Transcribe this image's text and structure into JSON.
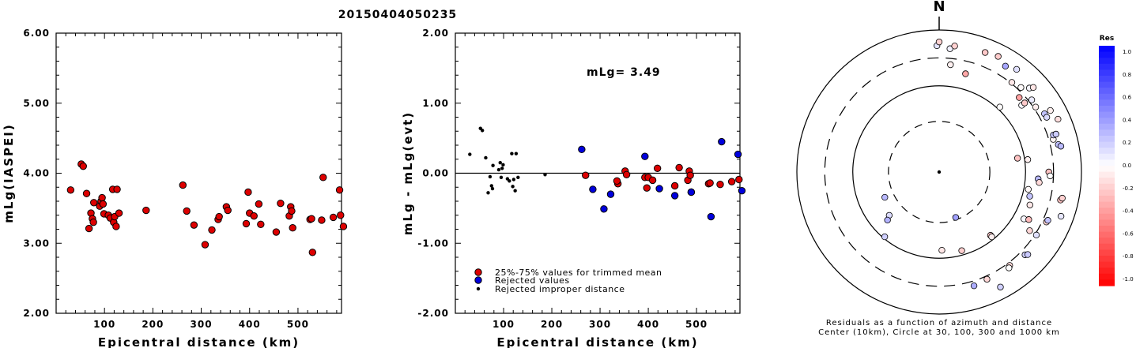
{
  "title": "20150404050235",
  "colors": {
    "red": "#dd0000",
    "blue": "#0000dd",
    "black": "#000000"
  },
  "chart_data": [
    {
      "type": "scatter",
      "xlabel": "Epicentral distance (km)",
      "ylabel": "mLg(IASPEI)",
      "xlim": [
        0,
        590
      ],
      "ylim": [
        2.0,
        6.0
      ],
      "xticks": [
        "100",
        "200",
        "300",
        "400",
        "500"
      ],
      "yticks": [
        "2.00",
        "3.00",
        "4.00",
        "5.00",
        "6.00"
      ],
      "points": [
        [
          30,
          3.76
        ],
        [
          52,
          4.13
        ],
        [
          56,
          4.1
        ],
        [
          63,
          3.71
        ],
        [
          68,
          3.21
        ],
        [
          72,
          3.43
        ],
        [
          75,
          3.35
        ],
        [
          77,
          3.3
        ],
        [
          78,
          3.58
        ],
        [
          90,
          3.53
        ],
        [
          93,
          3.6
        ],
        [
          95,
          3.65
        ],
        [
          97,
          3.56
        ],
        [
          99,
          3.42
        ],
        [
          108,
          3.4
        ],
        [
          112,
          3.36
        ],
        [
          117,
          3.77
        ],
        [
          119,
          3.3
        ],
        [
          121,
          3.38
        ],
        [
          124,
          3.24
        ],
        [
          126,
          3.77
        ],
        [
          130,
          3.43
        ],
        [
          186,
          3.47
        ],
        [
          262,
          3.83
        ],
        [
          270,
          3.46
        ],
        [
          285,
          3.26
        ],
        [
          308,
          2.98
        ],
        [
          322,
          3.19
        ],
        [
          335,
          3.34
        ],
        [
          337,
          3.38
        ],
        [
          352,
          3.52
        ],
        [
          355,
          3.47
        ],
        [
          393,
          3.28
        ],
        [
          397,
          3.73
        ],
        [
          400,
          3.43
        ],
        [
          409,
          3.39
        ],
        [
          419,
          3.56
        ],
        [
          423,
          3.27
        ],
        [
          455,
          3.16
        ],
        [
          464,
          3.57
        ],
        [
          482,
          3.39
        ],
        [
          485,
          3.52
        ],
        [
          487,
          3.46
        ],
        [
          489,
          3.22
        ],
        [
          525,
          3.34
        ],
        [
          528,
          3.35
        ],
        [
          530,
          2.87
        ],
        [
          549,
          3.33
        ],
        [
          552,
          3.94
        ],
        [
          573,
          3.37
        ],
        [
          586,
          3.76
        ],
        [
          588,
          3.4
        ],
        [
          594,
          3.24
        ]
      ]
    },
    {
      "type": "scatter",
      "xlabel": "Epicentral distance (km)",
      "ylabel": "mLg - mLg(evt)",
      "xlim": [
        0,
        590
      ],
      "ylim": [
        -2.0,
        2.0
      ],
      "xticks": [
        "100",
        "200",
        "300",
        "400",
        "500"
      ],
      "yticks": [
        "-2.00",
        "-1.00",
        "0.00",
        "1.00",
        "2.00"
      ],
      "annotation": "mLg= 3.49",
      "legend": [
        {
          "label": "25%-75% values for trimmed mean",
          "color": "#dd0000",
          "marker": "circle"
        },
        {
          "label": "Rejected values",
          "color": "#0000dd",
          "marker": "circle"
        },
        {
          "label": "Rejected improper distance",
          "color": "#000000",
          "marker": "dot"
        }
      ],
      "series": [
        {
          "kind": "trimmed",
          "points": [
            [
              270,
              -0.03
            ],
            [
              337,
              -0.15
            ],
            [
              335,
              -0.11
            ],
            [
              352,
              0.03
            ],
            [
              355,
              -0.02
            ],
            [
              393,
              -0.06
            ],
            [
              397,
              -0.21
            ],
            [
              400,
              -0.06
            ],
            [
              409,
              -0.1
            ],
            [
              419,
              0.07
            ],
            [
              455,
              -0.18
            ],
            [
              464,
              0.08
            ],
            [
              482,
              -0.1
            ],
            [
              485,
              0.03
            ],
            [
              487,
              -0.03
            ],
            [
              489,
              -0.27
            ],
            [
              525,
              -0.15
            ],
            [
              528,
              -0.14
            ],
            [
              549,
              -0.16
            ],
            [
              573,
              -0.12
            ],
            [
              588,
              -0.09
            ]
          ]
        },
        {
          "kind": "rejected",
          "points": [
            [
              262,
              0.34
            ],
            [
              285,
              -0.23
            ],
            [
              308,
              -0.51
            ],
            [
              322,
              -0.3
            ],
            [
              393,
              0.24
            ],
            [
              423,
              -0.22
            ],
            [
              455,
              -0.32
            ],
            [
              489,
              -0.27
            ],
            [
              530,
              -0.62
            ],
            [
              552,
              0.45
            ],
            [
              586,
              0.27
            ],
            [
              594,
              -0.25
            ]
          ]
        },
        {
          "kind": "improper",
          "points": [
            [
              30,
              0.27
            ],
            [
              52,
              0.64
            ],
            [
              56,
              0.61
            ],
            [
              63,
              0.22
            ],
            [
              68,
              -0.28
            ],
            [
              72,
              -0.05
            ],
            [
              75,
              -0.18
            ],
            [
              77,
              -0.22
            ],
            [
              78,
              0.11
            ],
            [
              90,
              0.05
            ],
            [
              93,
              0.15
            ],
            [
              95,
              -0.06
            ],
            [
              97,
              0.07
            ],
            [
              99,
              0.12
            ],
            [
              108,
              -0.08
            ],
            [
              112,
              -0.11
            ],
            [
              117,
              0.28
            ],
            [
              119,
              -0.19
            ],
            [
              121,
              -0.09
            ],
            [
              124,
              -0.25
            ],
            [
              126,
              0.28
            ],
            [
              130,
              -0.06
            ],
            [
              186,
              -0.02
            ]
          ]
        }
      ]
    },
    {
      "type": "scatter",
      "subtype": "polar",
      "north_label": "N",
      "caption_lines": [
        "Residuals as a function of azimuth and distance",
        "Center (10km), Circle at 30, 100, 300 and 1000 km"
      ],
      "colorbar": {
        "title": "Res",
        "ticks": [
          "1.0",
          "0.8",
          "0.6",
          "0.4",
          "0.2",
          "0.0",
          "-0.2",
          "-0.4",
          "-0.6",
          "-0.8",
          "-1.0"
        ]
      },
      "points": [
        [
          28,
          1240,
          0.37
        ],
        [
          40,
          1325,
          0.28
        ],
        [
          49,
          1309,
          0.14
        ],
        [
          57,
          1307,
          0.3
        ],
        [
          75,
          1258,
          -0.1
        ],
        [
          78,
          1160,
          -0.24
        ],
        [
          84,
          1221,
          -0.21
        ],
        [
          85,
          1244,
          -0.19
        ],
        [
          90,
          1221,
          -0.06
        ],
        [
          94,
          1300,
          0.19
        ],
        [
          110,
          1123,
          -0.01
        ],
        [
          112,
          1162,
          -0.06
        ],
        [
          118,
          1181,
          -0.03
        ],
        [
          132,
          1185,
          0.23
        ],
        [
          147,
          1190,
          -0.09
        ],
        [
          149,
          1199,
          0.03
        ],
        [
          163,
          1174,
          0.28
        ],
        [
          172,
          1176,
          -0.15
        ],
        [
          178,
          1198,
          -0.27
        ],
        [
          181,
          1095,
          -0.34
        ],
        [
          215,
          1131,
          0.03
        ],
        [
          230,
          1203,
          -0.16
        ],
        [
          232,
          1086,
          -0.06
        ],
        [
          245,
          1127,
          -0.37
        ],
        [
          247,
          1170,
          -0.24
        ],
        [
          250,
          1131,
          -0.21
        ],
        [
          262,
          1172,
          0.0
        ],
        [
          314,
          1119,
          -0.09
        ],
        [
          326,
          1136,
          -0.07
        ],
        [
          319,
          1203,
          0.12
        ],
        [
          337,
          1223,
          -0.15
        ],
        [
          340,
          1132,
          0.08
        ],
        [
          342,
          1236,
          -0.16
        ],
        [
          344,
          1124,
          -0.02
        ],
        [
          354,
          1195,
          -0.16
        ],
        [
          359,
          1154,
          -0.04
        ],
        [
          359,
          1224,
          0.0
        ],
        [
          363,
          1194,
          0.24
        ],
        [
          366,
          1243,
          0.32
        ],
        [
          369,
          1214,
          0.19
        ],
        [
          381,
          1152,
          0.22
        ],
        [
          385,
          1141,
          0.24
        ],
        [
          391,
          1143,
          0.15
        ],
        [
          398,
          1213,
          0.21
        ],
        [
          418,
          1157,
          0.25
        ],
        [
          427,
          1152,
          0.2
        ],
        [
          436,
          1127,
          0.04
        ],
        [
          449,
          1085,
          0.06
        ],
        [
          457,
          1158,
          0.27
        ],
        [
          460,
          1183,
          -0.24
        ],
        [
          470,
          1112,
          0.35
        ],
        [
          486,
          1182,
          -0.18
        ],
        [
          501,
          1079,
          0.11
        ],
        [
          503,
          1128,
          -0.1
        ],
        [
          513,
          1141,
          -0.06
        ],
        [
          514,
          1087,
          -0.18
        ],
        [
          539,
          1101,
          -0.21
        ],
        [
          550,
          1117,
          0.12
        ],
        [
          572,
          1190,
          0.09
        ],
        [
          581,
          1107,
          -0.2
        ],
        [
          583,
          1146,
          -0.13
        ],
        [
          589,
          1080,
          -0.18
        ],
        [
          594,
          1232,
          0.18
        ]
      ]
    }
  ]
}
